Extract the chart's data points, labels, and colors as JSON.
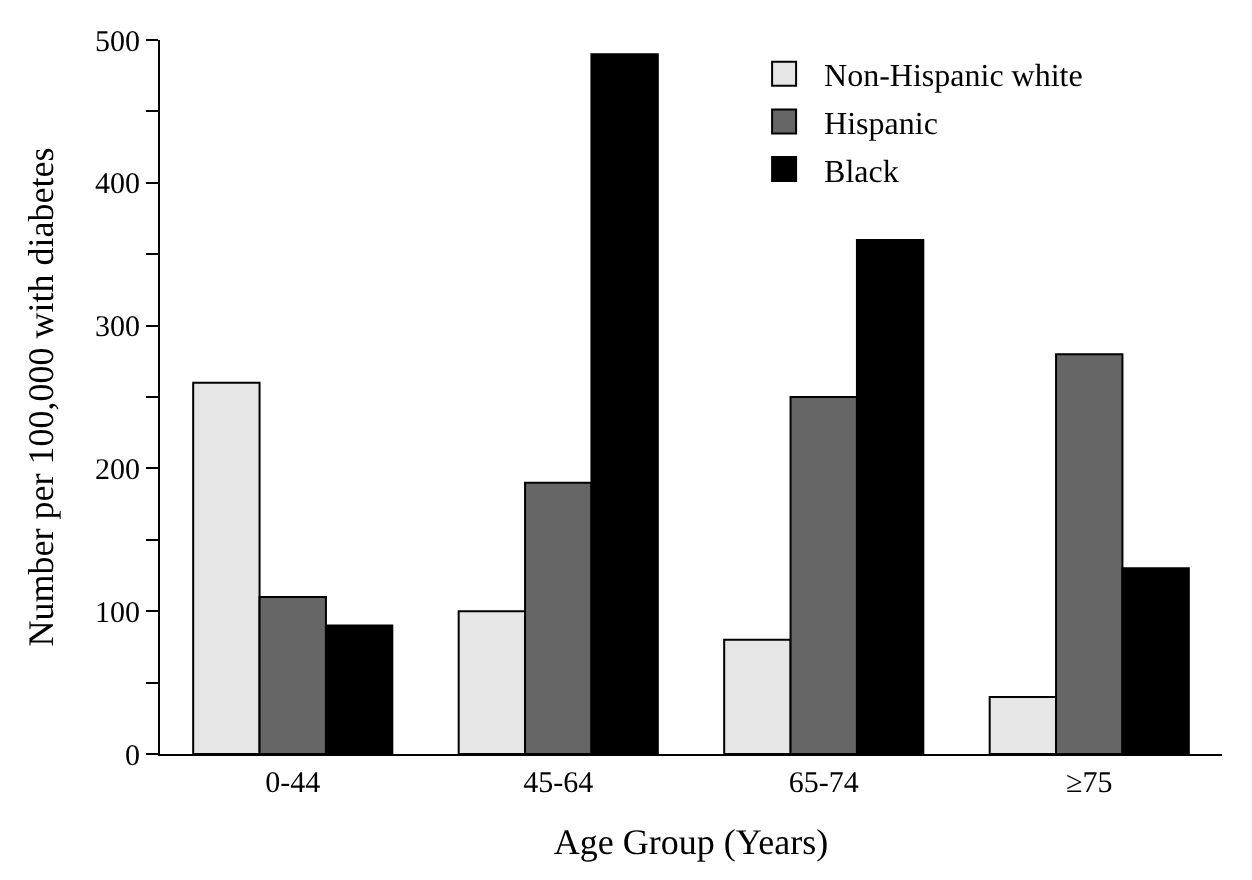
{
  "chart_data": {
    "type": "bar",
    "xlabel": "Age Group (Years)",
    "ylabel": "Number per 100,000 with diabetes",
    "categories": [
      "0-44",
      "45-64",
      "65-74",
      "≥75"
    ],
    "series": [
      {
        "name": "Non-Hispanic white",
        "color": "#e6e6e6",
        "values": [
          260,
          100,
          80,
          40
        ]
      },
      {
        "name": "Hispanic",
        "color": "#666666",
        "values": [
          110,
          190,
          250,
          280
        ]
      },
      {
        "name": "Black",
        "color": "#000000",
        "values": [
          90,
          490,
          360,
          130
        ]
      }
    ],
    "ylim": [
      0,
      500
    ],
    "yticks": [
      0,
      {
        "value": 50,
        "label": null
      },
      100,
      {
        "value": 150,
        "label": null
      },
      200,
      {
        "value": 250,
        "label": null
      },
      300,
      {
        "value": 350,
        "label": null
      },
      400,
      {
        "value": 450,
        "label": null
      },
      500
    ],
    "legend": "top right"
  }
}
